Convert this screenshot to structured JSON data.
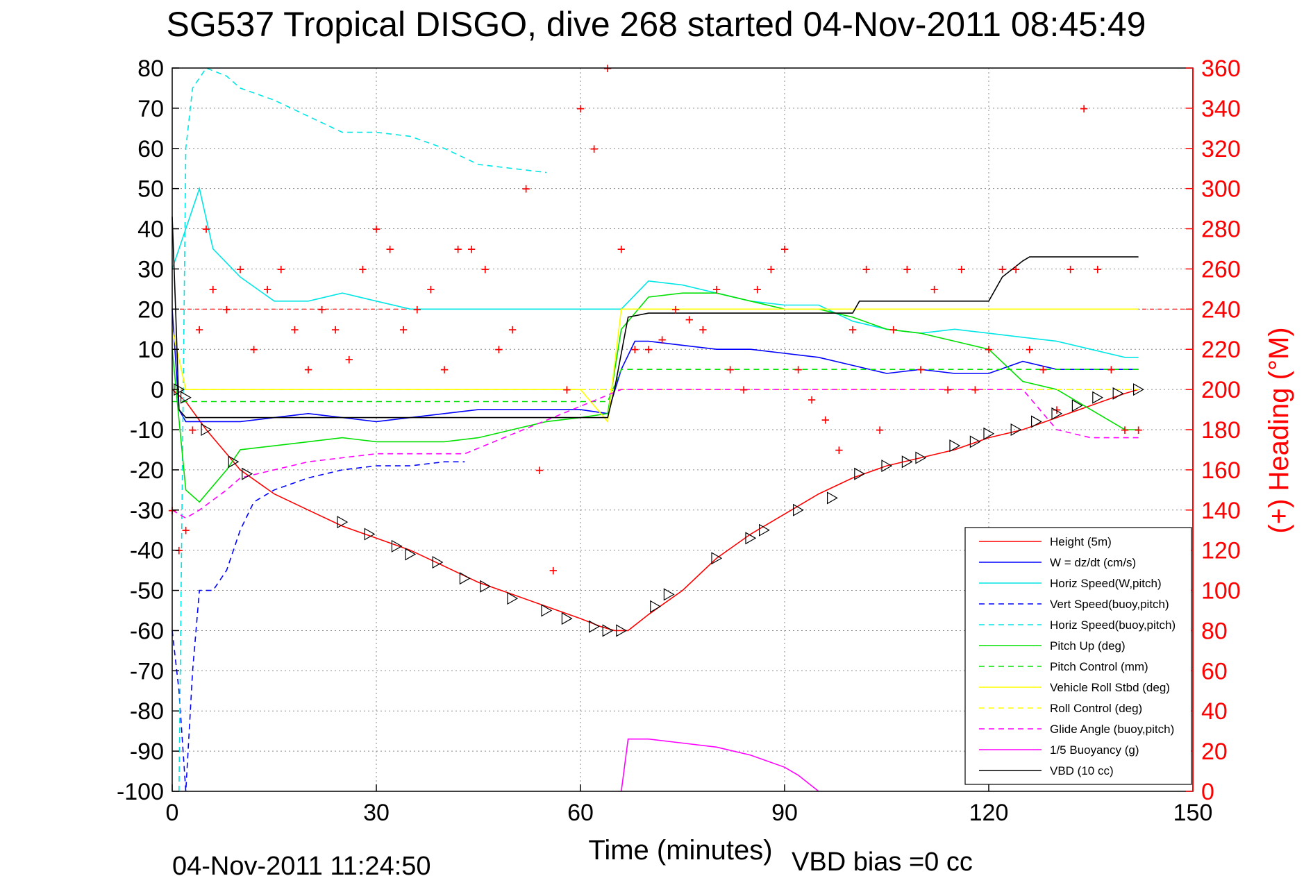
{
  "chart_data": {
    "type": "line",
    "title": "SG537 Tropical DISGO, dive 268 started 04-Nov-2011 08:45:49",
    "xlabel": "Time (minutes)",
    "ylabel": "",
    "ylabel_right": "(+) Heading (°M)",
    "xlim": [
      0,
      150
    ],
    "ylim": [
      -100,
      80
    ],
    "ylim_right": [
      0,
      360
    ],
    "x_ticks": [
      "0",
      "30",
      "60",
      "90",
      "120",
      "150"
    ],
    "y_ticks": [
      "80",
      "70",
      "60",
      "50",
      "40",
      "30",
      "20",
      "10",
      "0",
      "-10",
      "-20",
      "-30",
      "-40",
      "-50",
      "-60",
      "-70",
      "-80",
      "-90",
      "-100"
    ],
    "y_ticks_right": [
      "360",
      "340",
      "320",
      "300",
      "280",
      "260",
      "240",
      "220",
      "200",
      "180",
      "160",
      "140",
      "120",
      "100",
      "80",
      "60",
      "40",
      "20",
      "0"
    ],
    "grid": true,
    "legend_position": "lower-right",
    "footer_left": "04-Nov-2011 11:24:50",
    "footer_right": "VBD bias =0 cc",
    "series": [
      {
        "name": "Height (5m)",
        "color": "#ff0000",
        "style": "solid",
        "x": [
          0,
          2,
          5,
          10,
          15,
          20,
          25,
          30,
          35,
          40,
          45,
          50,
          55,
          60,
          63,
          65,
          67,
          70,
          75,
          80,
          85,
          90,
          95,
          100,
          105,
          110,
          115,
          120,
          125,
          130,
          135,
          140,
          142
        ],
        "y": [
          0,
          -3,
          -10,
          -20,
          -26,
          -30,
          -34,
          -37,
          -40,
          -44,
          -48,
          -51,
          -54,
          -57,
          -59,
          -60,
          -60,
          -56,
          -50,
          -42,
          -36,
          -31,
          -26,
          -22,
          -19,
          -17,
          -15,
          -12,
          -10,
          -7,
          -4,
          -1,
          0
        ]
      },
      {
        "name": "W = dz/dt (cm/s)",
        "color": "#0000ff",
        "style": "solid",
        "x": [
          0,
          1,
          2,
          4,
          6,
          10,
          15,
          20,
          25,
          30,
          35,
          40,
          45,
          50,
          55,
          60,
          64,
          66,
          68,
          70,
          75,
          80,
          85,
          90,
          95,
          100,
          105,
          110,
          115,
          120,
          125,
          130,
          135,
          140,
          142
        ],
        "y": [
          20,
          -5,
          -8,
          -8,
          -8,
          -8,
          -7,
          -6,
          -7,
          -8,
          -7,
          -6,
          -5,
          -5,
          -5,
          -5,
          -6,
          5,
          12,
          12,
          11,
          10,
          10,
          9,
          8,
          6,
          4,
          5,
          4,
          4,
          7,
          5,
          5,
          5,
          5
        ]
      },
      {
        "name": "Horiz Speed(W,pitch)",
        "color": "#00e5e5",
        "style": "solid",
        "x": [
          0,
          2,
          4,
          6,
          10,
          15,
          20,
          25,
          30,
          35,
          40,
          45,
          50,
          55,
          60,
          64,
          66,
          70,
          75,
          80,
          85,
          90,
          95,
          100,
          105,
          110,
          115,
          120,
          125,
          130,
          135,
          140,
          142
        ],
        "y": [
          30,
          40,
          50,
          35,
          28,
          22,
          22,
          24,
          22,
          20,
          20,
          20,
          20,
          20,
          20,
          20,
          20,
          27,
          26,
          24,
          22,
          21,
          21,
          17,
          15,
          14,
          15,
          14,
          13,
          12,
          10,
          8,
          8
        ]
      },
      {
        "name": "Vert Speed(buoy,pitch)",
        "color": "#0000ff",
        "style": "dashed",
        "x": [
          0,
          1,
          2,
          3,
          4,
          6,
          8,
          10,
          12,
          15,
          20,
          25,
          30,
          35,
          40,
          43
        ],
        "y": [
          -60,
          -75,
          -100,
          -70,
          -50,
          -50,
          -45,
          -35,
          -28,
          -25,
          -22,
          -20,
          -19,
          -19,
          -18,
          -18
        ]
      },
      {
        "name": "Horiz Speed(buoy,pitch)",
        "color": "#00e5e5",
        "style": "dashed",
        "x": [
          1,
          2,
          3,
          5,
          8,
          10,
          15,
          20,
          25,
          30,
          35,
          40,
          45,
          50,
          55
        ],
        "y": [
          -100,
          60,
          75,
          80,
          78,
          75,
          72,
          68,
          64,
          64,
          63,
          60,
          56,
          55,
          54
        ]
      },
      {
        "name": "Pitch Up (deg)",
        "color": "#00e000",
        "style": "solid",
        "x": [
          0,
          2,
          4,
          8,
          10,
          15,
          20,
          25,
          30,
          35,
          40,
          45,
          50,
          55,
          60,
          64,
          66,
          70,
          75,
          80,
          85,
          90,
          95,
          100,
          105,
          110,
          115,
          120,
          125,
          130,
          135,
          140,
          142
        ],
        "y": [
          10,
          -25,
          -28,
          -20,
          -15,
          -14,
          -13,
          -12,
          -13,
          -13,
          -13,
          -12,
          -10,
          -8,
          -7,
          -6,
          15,
          23,
          24,
          24,
          22,
          20,
          20,
          18,
          15,
          14,
          12,
          10,
          2,
          0,
          -5,
          -10,
          -10
        ]
      },
      {
        "name": "Pitch Control (mm)",
        "color": "#00e000",
        "style": "dashed",
        "x": [
          0,
          10,
          20,
          30,
          40,
          50,
          60,
          64,
          66,
          80,
          100,
          120,
          142
        ],
        "y": [
          -3,
          -3,
          -3,
          -3,
          -3,
          -3,
          -3,
          -3,
          5,
          5,
          5,
          5,
          5
        ]
      },
      {
        "name": "Vehicle Roll Stbd (deg)",
        "color": "#ffff00",
        "style": "solid",
        "x": [
          0,
          2,
          10,
          20,
          30,
          40,
          50,
          60,
          64,
          66,
          70,
          80,
          90,
          100,
          110,
          120,
          130,
          140,
          142
        ],
        "y": [
          15,
          0,
          0,
          0,
          0,
          0,
          0,
          0,
          -8,
          20,
          20,
          20,
          20,
          20,
          20,
          20,
          20,
          20,
          20
        ]
      },
      {
        "name": "Roll Control (deg)",
        "color": "#ffff00",
        "style": "dashed",
        "x": [
          0,
          20,
          40,
          60,
          64,
          66,
          80,
          100,
          120,
          142
        ],
        "y": [
          0,
          0,
          0,
          0,
          0,
          0,
          0,
          0,
          0,
          0
        ]
      },
      {
        "name": "Glide Angle (buoy,pitch)",
        "color": "#ff00ff",
        "style": "dashed",
        "x": [
          0,
          2,
          4,
          8,
          10,
          15,
          20,
          25,
          30,
          35,
          40,
          43,
          66,
          80,
          100,
          120,
          125,
          130,
          135,
          140,
          142
        ],
        "y": [
          -30,
          -32,
          -30,
          -25,
          -22,
          -20,
          -18,
          -17,
          -16,
          -16,
          -16,
          -16,
          0,
          0,
          0,
          0,
          0,
          -10,
          -12,
          -12,
          -12
        ]
      },
      {
        "name": "1/5 Buoyancy (g)",
        "color": "#ff00ff",
        "style": "solid",
        "x": [
          66,
          67,
          70,
          75,
          80,
          85,
          90,
          92,
          95
        ],
        "y": [
          -100,
          -87,
          -87,
          -88,
          -89,
          -91,
          -94,
          -96,
          -100
        ]
      },
      {
        "name": "VBD (10 cc)",
        "color": "#000000",
        "style": "solid",
        "x": [
          0,
          0.5,
          1,
          2,
          5,
          10,
          20,
          30,
          40,
          50,
          60,
          64,
          65,
          67,
          70,
          80,
          90,
          100,
          101,
          110,
          120,
          122,
          125,
          126,
          130,
          140,
          142
        ],
        "y": [
          43,
          20,
          -5,
          -7,
          -7,
          -7,
          -7,
          -7,
          -7,
          -7,
          -7,
          -7,
          0,
          18,
          19,
          19,
          19,
          19,
          22,
          22,
          22,
          28,
          32,
          33,
          33,
          33,
          33
        ]
      },
      {
        "name": "Heading",
        "color": "#ff0000",
        "style": "markers",
        "axis": "right",
        "x": [
          0,
          1,
          2,
          3,
          4,
          5,
          6,
          8,
          10,
          12,
          14,
          16,
          18,
          20,
          22,
          24,
          26,
          28,
          30,
          32,
          34,
          36,
          38,
          40,
          42,
          44,
          46,
          48,
          50,
          52,
          54,
          56,
          58,
          60,
          62,
          64,
          66,
          68,
          70,
          72,
          74,
          76,
          78,
          80,
          82,
          84,
          86,
          88,
          90,
          92,
          94,
          96,
          98,
          100,
          102,
          104,
          106,
          108,
          110,
          112,
          114,
          116,
          118,
          120,
          122,
          124,
          126,
          128,
          130,
          132,
          134,
          136,
          138,
          140,
          142
        ],
        "y": [
          140,
          120,
          130,
          180,
          230,
          280,
          250,
          240,
          260,
          220,
          250,
          260,
          230,
          210,
          240,
          230,
          215,
          260,
          280,
          270,
          230,
          240,
          250,
          210,
          270,
          270,
          260,
          220,
          230,
          300,
          160,
          110,
          200,
          340,
          320,
          360,
          270,
          220,
          220,
          225,
          240,
          235,
          230,
          250,
          210,
          200,
          250,
          260,
          270,
          210,
          195,
          185,
          170,
          230,
          260,
          180,
          230,
          260,
          210,
          250,
          200,
          260,
          200,
          220,
          260,
          260,
          220,
          210,
          190,
          260,
          340,
          260,
          210,
          180,
          180
        ]
      },
      {
        "name": "Markers",
        "color": "#000000",
        "style": "triangles",
        "x": [
          1,
          2,
          5,
          9,
          11,
          25,
          29,
          33,
          35,
          39,
          43,
          46,
          50,
          55,
          58,
          62,
          64,
          66,
          71,
          73,
          80,
          85,
          87,
          92,
          97,
          101,
          105,
          108,
          110,
          115,
          118,
          120,
          124,
          127,
          130,
          133,
          136,
          139,
          142
        ],
        "y": [
          0,
          -2,
          -10,
          -18,
          -21,
          -33,
          -36,
          -39,
          -41,
          -43,
          -47,
          -49,
          -52,
          -55,
          -57,
          -59,
          -60,
          -60,
          -54,
          -51,
          -42,
          -37,
          -35,
          -30,
          -27,
          -21,
          -19,
          -18,
          -17,
          -14,
          -13,
          -11,
          -10,
          -8,
          -6,
          -4,
          -2,
          -1,
          0
        ]
      }
    ]
  }
}
